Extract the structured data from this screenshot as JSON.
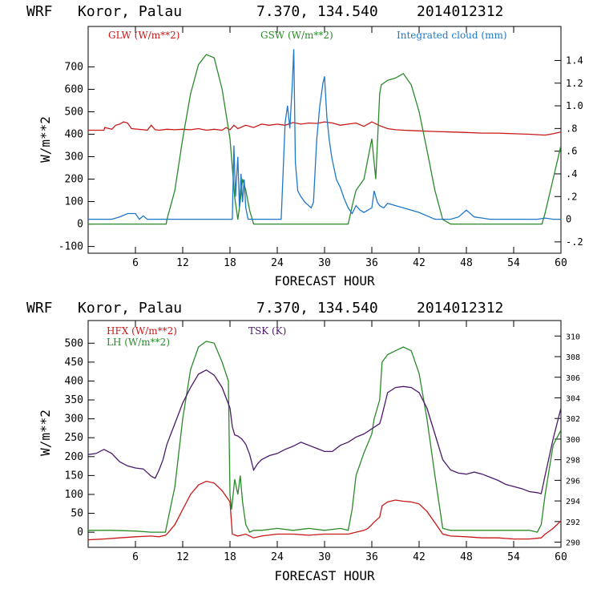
{
  "chart_data": [
    {
      "type": "line",
      "title": {
        "model": "WRF",
        "location": "Koror, Palau",
        "coords": "7.370, 134.540",
        "init": "2014012312"
      },
      "xlabel": "FORECAST HOUR",
      "ylabel": "W/m**2",
      "xlim": [
        0,
        60
      ],
      "xticks": [
        6,
        12,
        18,
        24,
        30,
        36,
        42,
        48,
        54,
        60
      ],
      "ylim": [
        -130,
        880
      ],
      "yticks": [
        -100,
        0,
        100,
        200,
        300,
        400,
        500,
        600,
        700
      ],
      "y2lim": [
        -0.3,
        1.7
      ],
      "y2ticks": [
        "-.2",
        "0",
        ".2",
        ".4",
        ".6",
        ".8",
        "1.0",
        "1.2",
        "1.4"
      ],
      "y2tick_values": [
        -0.2,
        0,
        0.2,
        0.4,
        0.6,
        0.8,
        1.0,
        1.2,
        1.4
      ],
      "series": [
        {
          "name": "GLW (W/m**2)",
          "color": "#c81818",
          "axis": "left",
          "x": [
            0,
            2,
            2.1,
            3,
            3.5,
            4,
            4.5,
            5,
            5.5,
            7,
            7.5,
            8,
            8.5,
            9,
            10,
            11,
            12,
            13,
            14,
            15,
            16,
            17,
            17.5,
            18,
            18.5,
            19,
            20,
            21,
            22,
            23,
            24,
            25,
            26,
            27,
            28,
            29,
            30,
            31,
            32,
            33,
            34,
            35,
            36,
            37,
            38,
            39,
            40,
            42,
            44,
            46,
            48,
            50,
            52,
            54,
            56,
            58,
            59,
            60
          ],
          "y": [
            418,
            418,
            430,
            422,
            440,
            445,
            455,
            450,
            425,
            420,
            418,
            440,
            420,
            418,
            422,
            420,
            422,
            420,
            425,
            418,
            422,
            418,
            430,
            420,
            440,
            425,
            440,
            430,
            445,
            440,
            445,
            440,
            452,
            445,
            450,
            448,
            455,
            450,
            440,
            445,
            450,
            435,
            455,
            438,
            425,
            420,
            418,
            415,
            412,
            410,
            408,
            405,
            405,
            402,
            400,
            396,
            402,
            410
          ]
        },
        {
          "name": "GSW (W/m**2)",
          "color": "#2a8a2a",
          "axis": "left",
          "x": [
            0,
            9.9,
            10,
            11,
            12,
            13,
            14,
            15,
            16,
            17,
            18,
            18.6,
            19,
            19.3,
            19.6,
            20,
            20.5,
            21,
            22,
            24,
            30,
            33,
            33.5,
            34,
            35,
            36,
            36.5,
            37,
            37.2,
            38,
            39,
            40,
            41,
            42,
            43,
            44,
            45,
            46,
            57.6,
            58,
            59,
            60
          ],
          "y": [
            0,
            0,
            20,
            150,
            380,
            580,
            710,
            755,
            740,
            600,
            380,
            120,
            20,
            100,
            200,
            150,
            60,
            0,
            0,
            0,
            0,
            0,
            80,
            150,
            200,
            380,
            200,
            580,
            620,
            640,
            650,
            670,
            620,
            500,
            330,
            150,
            20,
            0,
            0,
            50,
            200,
            350
          ]
        },
        {
          "name": "Integrated cloud (mm)",
          "color": "#1e78c8",
          "axis": "right",
          "x": [
            0,
            2,
            3,
            4,
            5,
            6,
            6.5,
            7,
            7.5,
            8,
            18.3,
            18.5,
            18.7,
            19,
            19.2,
            19.4,
            19.6,
            19.8,
            20,
            20.3,
            24.5,
            25,
            25.3,
            25.6,
            25.9,
            26.1,
            26.3,
            26.6,
            27,
            27.5,
            28,
            28.3,
            28.6,
            29,
            29.4,
            29.8,
            30,
            30.3,
            30.6,
            30.9,
            31.2,
            31.5,
            32,
            32.5,
            33,
            33.5,
            34,
            34.5,
            35,
            36,
            36.3,
            36.7,
            37,
            37.5,
            38,
            39,
            40,
            41,
            42,
            43,
            44,
            45,
            46,
            47,
            48,
            49,
            50,
            51,
            52,
            53,
            54,
            57,
            58,
            59,
            60
          ],
          "y": [
            0,
            0,
            0,
            0.02,
            0.05,
            0.05,
            0,
            0.03,
            0,
            0,
            0,
            0.65,
            0.2,
            0.55,
            0.1,
            0.4,
            0.15,
            0.35,
            0.1,
            0,
            0,
            0.85,
            1.0,
            0.8,
            1.18,
            1.5,
            0.5,
            0.25,
            0.2,
            0.15,
            0.12,
            0.1,
            0.15,
            0.7,
            1.0,
            1.2,
            1.26,
            0.9,
            0.7,
            0.55,
            0.45,
            0.35,
            0.28,
            0.18,
            0.1,
            0.05,
            0.12,
            0.08,
            0.06,
            0.1,
            0.25,
            0.15,
            0.12,
            0.1,
            0.14,
            0.12,
            0.1,
            0.08,
            0.06,
            0.03,
            0,
            0,
            0,
            0.02,
            0.08,
            0.02,
            0.01,
            0,
            0,
            0,
            0,
            0,
            0.01,
            0,
            0
          ]
        }
      ],
      "legend": [
        "GLW (W/m**2)",
        "GSW (W/m**2)",
        "Integrated cloud (mm)"
      ]
    },
    {
      "type": "line",
      "title": {
        "model": "WRF",
        "location": "Koror, Palau",
        "coords": "7.370, 134.540",
        "init": "2014012312"
      },
      "xlabel": "FORECAST HOUR",
      "ylabel": "W/m**2",
      "xlim": [
        0,
        60
      ],
      "xticks": [
        6,
        12,
        18,
        24,
        30,
        36,
        42,
        48,
        54,
        60
      ],
      "ylim": [
        -40,
        560
      ],
      "yticks": [
        0,
        50,
        100,
        150,
        200,
        250,
        300,
        350,
        400,
        450,
        500
      ],
      "y2lim": [
        289.5,
        311.5
      ],
      "y2ticks": [
        290,
        292,
        294,
        296,
        298,
        300,
        302,
        304,
        306,
        308,
        310
      ],
      "series": [
        {
          "name": "HFX (W/m**2)",
          "color": "#c81818",
          "axis": "left",
          "x": [
            0,
            2,
            4,
            6,
            8,
            9,
            9.8,
            10,
            11,
            12,
            13,
            14,
            15,
            16,
            17,
            18,
            18.3,
            19,
            20,
            21,
            22,
            24,
            26,
            28,
            30,
            32,
            33,
            34,
            35,
            35.5,
            36,
            36.2,
            37,
            37.3,
            38,
            39,
            40,
            41,
            42,
            43,
            44,
            45,
            46,
            48,
            50,
            52,
            54,
            56,
            57.5,
            58,
            59,
            60
          ],
          "y": [
            -20,
            -18,
            -15,
            -12,
            -10,
            -12,
            -8,
            -5,
            20,
            60,
            100,
            125,
            135,
            130,
            110,
            80,
            -5,
            -10,
            -5,
            -15,
            -10,
            -5,
            -5,
            -8,
            -5,
            -5,
            -5,
            0,
            5,
            10,
            20,
            25,
            40,
            70,
            80,
            85,
            82,
            80,
            75,
            55,
            25,
            -5,
            -10,
            -12,
            -15,
            -15,
            -18,
            -18,
            -15,
            -5,
            10,
            30
          ]
        },
        {
          "name": "LH (W/m**2)",
          "color": "#2a8a2a",
          "axis": "left",
          "x": [
            0,
            3,
            6,
            8,
            9,
            9.8,
            10,
            11,
            12,
            13,
            14,
            15,
            16,
            17,
            17.8,
            18,
            18.2,
            18.6,
            19,
            19.3,
            19.6,
            20,
            20.5,
            21,
            22,
            24,
            26,
            28,
            30,
            32,
            33,
            33.5,
            34,
            35,
            36,
            36.3,
            37,
            37.3,
            38,
            39,
            40,
            41,
            42,
            43,
            44,
            45,
            46,
            48,
            50,
            52,
            54,
            56,
            57,
            57.5,
            58,
            59,
            60
          ],
          "y": [
            5,
            5,
            3,
            0,
            0,
            0,
            20,
            120,
            300,
            430,
            490,
            505,
            500,
            450,
            400,
            100,
            60,
            140,
            100,
            150,
            80,
            20,
            0,
            5,
            5,
            10,
            5,
            10,
            5,
            10,
            5,
            60,
            150,
            210,
            260,
            300,
            350,
            450,
            470,
            480,
            490,
            480,
            420,
            300,
            150,
            10,
            5,
            5,
            5,
            5,
            5,
            5,
            0,
            20,
            100,
            230,
            270
          ]
        },
        {
          "name": "TSK (K)",
          "color": "#4a1a6a",
          "axis": "right",
          "x": [
            0,
            1,
            2,
            3,
            4,
            5,
            6,
            7,
            8,
            8.5,
            9,
            9.5,
            10,
            11,
            12,
            13,
            14,
            15,
            16,
            17,
            18,
            18.3,
            18.6,
            19,
            19.5,
            20,
            20.5,
            21,
            21.5,
            22,
            23,
            24,
            25,
            26,
            27,
            28,
            29,
            30,
            31,
            32,
            33,
            34,
            35,
            36,
            37,
            37.2,
            38,
            39,
            40,
            41,
            42,
            43,
            44,
            45,
            46,
            47,
            48,
            49,
            50,
            51,
            52,
            53,
            54,
            55,
            56,
            57,
            57.5,
            58,
            59,
            60
          ],
          "y": [
            298.5,
            298.6,
            299.0,
            298.6,
            297.8,
            297.4,
            297.2,
            297.1,
            296.4,
            296.2,
            297.0,
            298.0,
            299.5,
            301.5,
            303.5,
            305.0,
            306.3,
            306.7,
            306.2,
            305.0,
            303.0,
            301.2,
            300.4,
            300.3,
            300.0,
            299.5,
            298.5,
            297.0,
            297.6,
            298.0,
            298.4,
            298.6,
            299.0,
            299.3,
            299.7,
            299.4,
            299.1,
            298.8,
            298.8,
            299.4,
            299.7,
            300.2,
            300.5,
            301.0,
            301.5,
            302.0,
            304.5,
            305.0,
            305.1,
            305.0,
            304.5,
            303.0,
            300.5,
            298.0,
            297.0,
            296.7,
            296.6,
            296.8,
            296.6,
            296.3,
            296.0,
            295.6,
            295.4,
            295.2,
            294.9,
            294.8,
            294.7,
            296.5,
            300.0,
            303.0
          ]
        }
      ],
      "legend": [
        "HFX (W/m**2)",
        "LH (W/m**2)",
        "TSK (K)"
      ]
    }
  ],
  "label_colors": {
    "glw": "#c81818",
    "gsw": "#2a8a2a",
    "cloud": "#1e78c8",
    "hfx": "#c81818",
    "lh": "#2a8a2a",
    "tsk": "#4a1a6a"
  }
}
